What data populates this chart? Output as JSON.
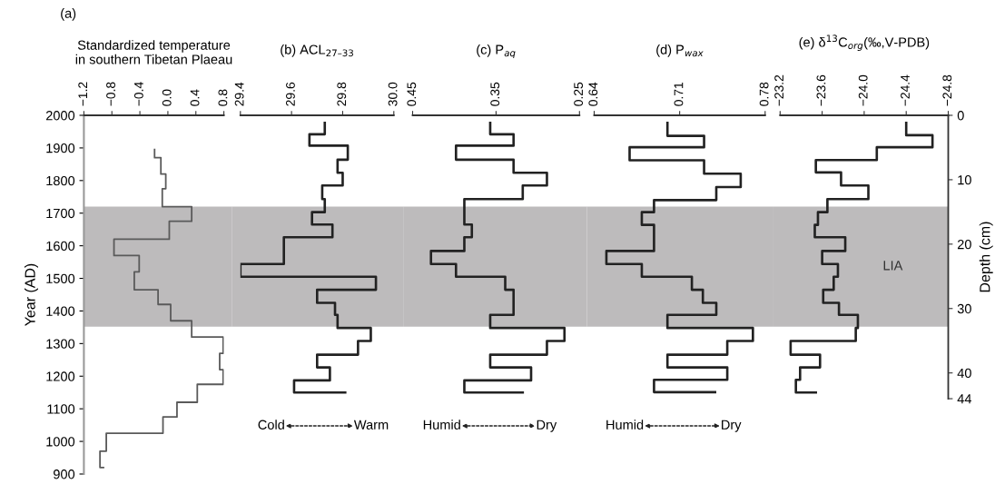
{
  "chart_data": [
    {
      "type": "step",
      "orientation": "horizontal",
      "title": "(a)",
      "xlabel": "Standardized temperature\nin southern Tibetan Plaeau",
      "ylabel": "Year (AD)",
      "color": "#5a5a5a",
      "x": [
        1895,
        1870,
        1820,
        1775,
        1720,
        1675,
        1620,
        1570,
        1520,
        1465,
        1420,
        1370,
        1320,
        1270,
        1220,
        1175,
        1120,
        1075,
        1025,
        970,
        920
      ],
      "values": [
        -0.19,
        -0.1,
        -0.03,
        -0.08,
        0.34,
        0.02,
        -0.77,
        -0.41,
        -0.48,
        -0.14,
        0.04,
        0.34,
        0.79,
        0.74,
        0.79,
        0.42,
        0.13,
        -0.07,
        -0.88,
        -0.97,
        -0.92
      ],
      "xlim": [
        -1.2,
        0.8
      ],
      "xticks": [
        {
          "value": -1.2,
          "label": "−1.2"
        },
        {
          "value": -0.8,
          "label": "−0.8"
        },
        {
          "value": -0.4,
          "label": "−0.4"
        },
        {
          "value": 0.0,
          "label": "0.0"
        },
        {
          "value": 0.4,
          "label": "0.4"
        },
        {
          "value": 0.8,
          "label": "0.8"
        }
      ],
      "ylim": [
        900,
        2000
      ],
      "yticks": [
        900,
        1000,
        1100,
        1200,
        1300,
        1400,
        1500,
        1600,
        1700,
        1800,
        1900,
        2000
      ],
      "bands": [
        {
          "axis": "y",
          "from": 1352,
          "to": 1720,
          "color": "#bdbbbc"
        }
      ]
    },
    {
      "type": "step",
      "orientation": "horizontal",
      "title": "(b) ACL$_{27–33}$",
      "color": "#222222",
      "x": [
        1977,
        1942,
        1907,
        1864,
        1824,
        1785,
        1743,
        1703,
        1665,
        1626,
        1584,
        1544,
        1505,
        1465,
        1425,
        1388,
        1348,
        1308,
        1266,
        1227,
        1187,
        1150
      ],
      "values": [
        29.73,
        29.67,
        29.82,
        29.78,
        29.8,
        29.72,
        29.73,
        29.68,
        29.76,
        29.57,
        29.57,
        29.4,
        29.93,
        29.7,
        29.77,
        29.78,
        29.91,
        29.86,
        29.7,
        29.75,
        29.61,
        29.81
      ],
      "xlim": [
        29.4,
        30.0
      ],
      "xticks": [
        29.4,
        29.6,
        29.8,
        {
          "value": 30.0,
          "label": "30.0"
        }
      ],
      "ylim": [
        900,
        2000
      ],
      "tick_labels": "x",
      "bands": [
        {
          "axis": "y",
          "from": 1352,
          "to": 1720,
          "color": "#bdbbbc"
        }
      ],
      "annotations": [
        "Cold",
        "Warm"
      ]
    },
    {
      "type": "step",
      "orientation": "horizontal",
      "title": "(c) P$_{aq}$",
      "color": "#222222",
      "x": [
        1977,
        1942,
        1907,
        1864,
        1824,
        1785,
        1743,
        1665,
        1626,
        1584,
        1544,
        1505,
        1465,
        1388,
        1348,
        1308,
        1266,
        1227,
        1187,
        1150
      ],
      "values": [
        0.357,
        0.329,
        0.398,
        0.329,
        0.289,
        0.318,
        0.388,
        0.379,
        0.388,
        0.428,
        0.398,
        0.339,
        0.329,
        0.357,
        0.268,
        0.289,
        0.357,
        0.308,
        0.388,
        0.318
      ],
      "xlim": [
        0.45,
        0.25
      ],
      "xticks": [
        0.45,
        0.35,
        0.25
      ],
      "ylim": [
        900,
        2000
      ],
      "tick_labels": "x",
      "bands": [
        {
          "axis": "y",
          "from": 1352,
          "to": 1720,
          "color": "#bdbbbc"
        }
      ],
      "annotations": [
        "Humid",
        "Dry"
      ]
    },
    {
      "type": "step",
      "orientation": "horizontal",
      "title": "(d) P$_{wax}$",
      "color": "#222222",
      "x": [
        1977,
        1937,
        1902,
        1862,
        1821,
        1780,
        1740,
        1703,
        1664,
        1584,
        1544,
        1505,
        1465,
        1425,
        1388,
        1348,
        1308,
        1266,
        1227,
        1189,
        1151
      ],
      "values": [
        0.7,
        0.73,
        0.669,
        0.73,
        0.76,
        0.74,
        0.689,
        0.679,
        0.689,
        0.65,
        0.679,
        0.72,
        0.729,
        0.74,
        0.7,
        0.77,
        0.749,
        0.7,
        0.749,
        0.689,
        0.739
      ],
      "xlim": [
        0.64,
        0.78
      ],
      "xticks": [
        0.64,
        0.71,
        0.78
      ],
      "ylim": [
        900,
        2000
      ],
      "tick_labels": "x",
      "bands": [
        {
          "axis": "y",
          "from": 1352,
          "to": 1720,
          "color": "#bdbbbc"
        }
      ],
      "annotations": [
        "Humid",
        "Dry"
      ]
    },
    {
      "type": "step",
      "orientation": "horizontal",
      "title": "(e) δ$^{13}$C$_{org}$(‰,V-PDB)",
      "color": "#222222",
      "x": [
        1977,
        1939,
        1902,
        1863,
        1825,
        1785,
        1743,
        1703,
        1664,
        1626,
        1584,
        1544,
        1505,
        1465,
        1425,
        1388,
        1348,
        1308,
        1266,
        1227,
        1189,
        1150
      ],
      "values": [
        -24.4,
        -24.65,
        -24.12,
        -23.54,
        -23.78,
        -24.04,
        -23.65,
        -23.56,
        -23.53,
        -23.82,
        -23.6,
        -23.75,
        -23.71,
        -23.61,
        -23.76,
        -23.94,
        -23.92,
        -23.3,
        -23.58,
        -23.39,
        -23.35,
        -23.54
      ],
      "xlim": [
        -23.2,
        -24.8
      ],
      "xticks": [
        {
          "value": -23.2,
          "label": "−23.2"
        },
        {
          "value": -23.6,
          "label": "−23.6"
        },
        {
          "value": -24.0,
          "label": "−24.0"
        },
        {
          "value": -24.4,
          "label": "−24.4"
        },
        {
          "value": -24.8,
          "label": "−24.8"
        }
      ],
      "ylim": [
        900,
        2000
      ],
      "y2label": "Depth (cm)",
      "y2lim": [
        44,
        0
      ],
      "y2ticks": [
        0,
        10,
        20,
        30,
        40,
        44
      ],
      "bands": [
        {
          "axis": "y",
          "from": 1352,
          "to": 1720,
          "color": "#bdbbbc",
          "label": "LIA"
        }
      ]
    }
  ]
}
